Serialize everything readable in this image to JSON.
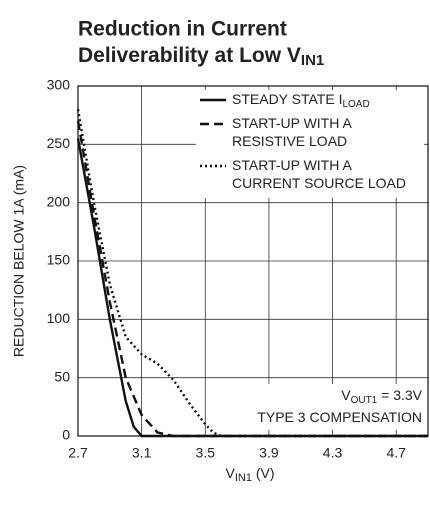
{
  "chart_data": {
    "type": "line",
    "title": [
      "Reduction in Current",
      "Deliverability at Low V"
    ],
    "title_sub": "IN1",
    "x_label": "V",
    "x_label_sub": "IN1",
    "x_label_unit": " (V)",
    "y_label": "REDUCTION BELOW 1A (mA)",
    "xlim": [
      2.7,
      4.9
    ],
    "xticks": [
      2.7,
      3.1,
      3.5,
      3.9,
      4.3,
      4.7
    ],
    "ylim": [
      0,
      300
    ],
    "yticks": [
      0,
      50,
      100,
      150,
      200,
      250,
      300
    ],
    "grid": true,
    "legend": "upper right",
    "series": [
      {
        "name": [
          "STEADY STATE I"
        ],
        "name_sub": "LOAD",
        "color": "#111",
        "dash": "solid",
        "x": [
          2.7,
          2.8,
          2.9,
          3.0,
          3.05,
          3.1,
          3.2,
          4.9
        ],
        "values": [
          255,
          180,
          100,
          30,
          8,
          0,
          0,
          0
        ]
      },
      {
        "name": [
          "START-UP WITH A",
          "RESISTIVE LOAD"
        ],
        "color": "#111",
        "dash": "dashed",
        "x": [
          2.7,
          2.8,
          2.9,
          3.0,
          3.1,
          3.2,
          3.3,
          4.9
        ],
        "values": [
          270,
          190,
          115,
          50,
          18,
          3,
          0,
          0
        ]
      },
      {
        "name": [
          "START-UP WITH A",
          "CURRENT SOURCE LOAD"
        ],
        "color": "#111",
        "dash": "dotted",
        "x": [
          2.7,
          2.8,
          2.9,
          3.0,
          3.1,
          3.2,
          3.3,
          3.4,
          3.5,
          3.55,
          3.6,
          4.9
        ],
        "values": [
          280,
          200,
          130,
          85,
          70,
          62,
          48,
          28,
          10,
          3,
          0,
          0
        ]
      }
    ],
    "annotations": [
      [
        "V",
        "OUT1",
        " = 3.3V"
      ],
      [
        "TYPE 3 COMPENSATION"
      ]
    ]
  }
}
